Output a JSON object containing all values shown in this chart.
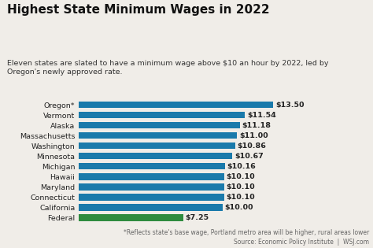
{
  "title": "Highest State Minimum Wages in 2022",
  "subtitle": "Eleven states are slated to have a minimum wage above $10 an hour by 2022, led by\nOregon's newly approved rate.",
  "footnote": "*Reflects state's base wage, Portland metro area will be higher, rural areas lower\nSource: Economic Policy Institute  |  WSJ.com",
  "states": [
    "Oregon*",
    "Vermont",
    "Alaska",
    "Massachusetts",
    "Washington",
    "Minnesota",
    "Michigan",
    "Hawaii",
    "Maryland",
    "Connecticut",
    "California",
    "Federal"
  ],
  "values": [
    13.5,
    11.54,
    11.18,
    11.0,
    10.86,
    10.67,
    10.16,
    10.1,
    10.1,
    10.1,
    10.0,
    7.25
  ],
  "labels": [
    "$13.50",
    "$11.54",
    "$11.18",
    "$11.00",
    "$10.86",
    "$10.67",
    "$10.16",
    "$10.10",
    "$10.10",
    "$10.10",
    "$10.00",
    "$7.25"
  ],
  "bar_colors": [
    "#1a7aab",
    "#1a7aab",
    "#1a7aab",
    "#1a7aab",
    "#1a7aab",
    "#1a7aab",
    "#1a7aab",
    "#1a7aab",
    "#1a7aab",
    "#1a7aab",
    "#1a7aab",
    "#2e8b3e"
  ],
  "background_color": "#f0ede8",
  "title_fontsize": 11,
  "subtitle_fontsize": 6.8,
  "label_fontsize": 6.8,
  "bar_label_fontsize": 6.8,
  "footnote_fontsize": 5.5,
  "xlim": [
    0,
    15.5
  ]
}
